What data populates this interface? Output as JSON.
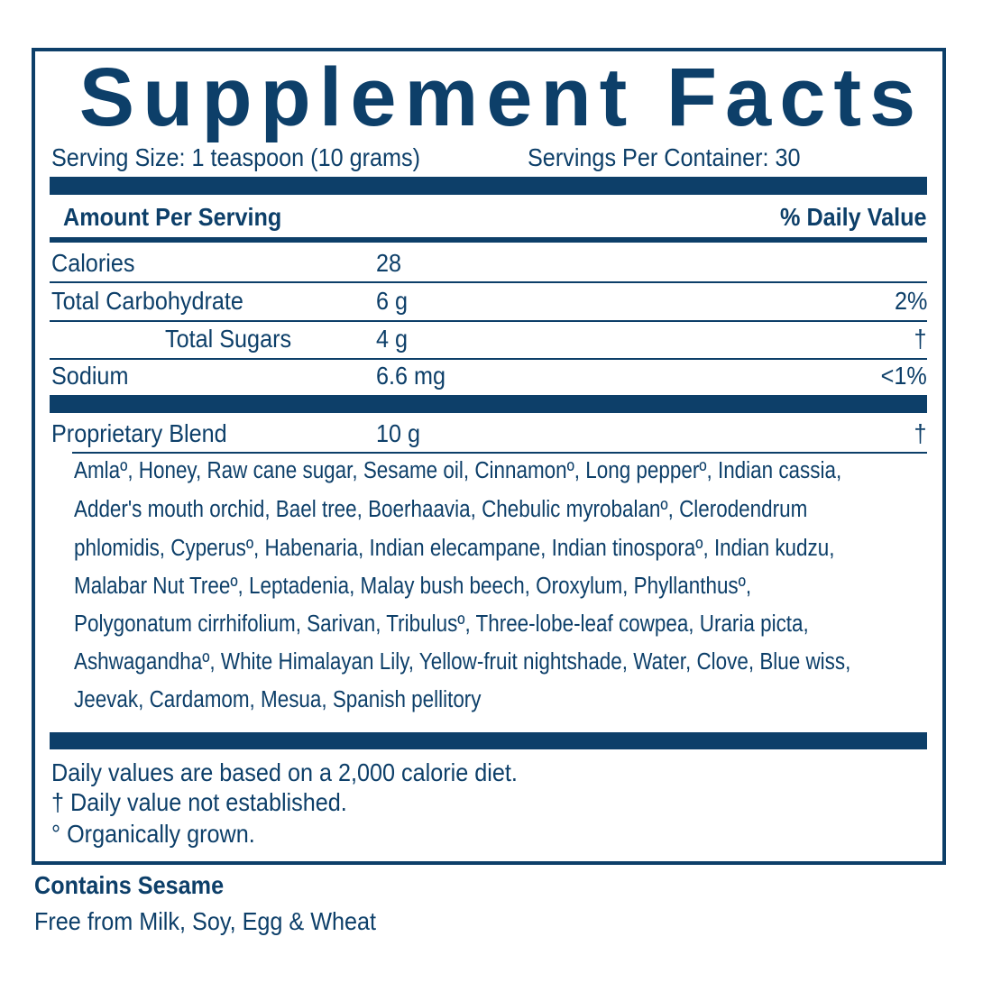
{
  "title": "Supplement Facts",
  "serving_size": "Serving Size: 1 teaspoon (10 grams)",
  "servings_per_container": "Servings Per Container: 30",
  "header": {
    "amount": "Amount Per Serving",
    "dv": "% Daily Value"
  },
  "rows": [
    {
      "name": "Calories",
      "amount": "28",
      "dv": ""
    },
    {
      "name": "Total Carbohydrate",
      "amount": "6 g",
      "dv": "2%"
    },
    {
      "name": "Total Sugars",
      "amount": "4 g",
      "dv": "†"
    },
    {
      "name": "Sodium",
      "amount": "6.6 mg",
      "dv": "<1%"
    }
  ],
  "blend": {
    "name": "Proprietary Blend",
    "amount": "10 g",
    "dv": "†"
  },
  "ingredients": [
    "Amlaº, Honey, Raw cane sugar, Sesame oil, Cinnamonº, Long pepperº, Indian cassia,",
    "Adder's mouth orchid, Bael tree, Boerhaavia, Chebulic myrobalanº, Clerodendrum",
    "phlomidis, Cyperusº, Habenaria, Indian elecampane, Indian tinosporaº, Indian kudzu,",
    "Malabar Nut Treeº, Leptadenia, Malay bush beech, Oroxylum, Phyllanthusº,",
    "Polygonatum cirrhifolium,  Sarivan, Tribulusº, Three-lobe-leaf cowpea, Uraria picta,",
    "Ashwagandhaº, White Himalayan Lily, Yellow-fruit nightshade, Water, Clove, Blue wiss,",
    "Jeevak, Cardamom, Mesua, Spanish pellitory"
  ],
  "footnotes": [
    "Daily values are based on a 2,000 calorie diet.",
    "† Daily value not established.",
    "° Organically grown."
  ],
  "allergen": "Contains Sesame",
  "free_from": "Free from Milk, Soy, Egg & Wheat",
  "colors": {
    "ink": "#0d3f69"
  }
}
